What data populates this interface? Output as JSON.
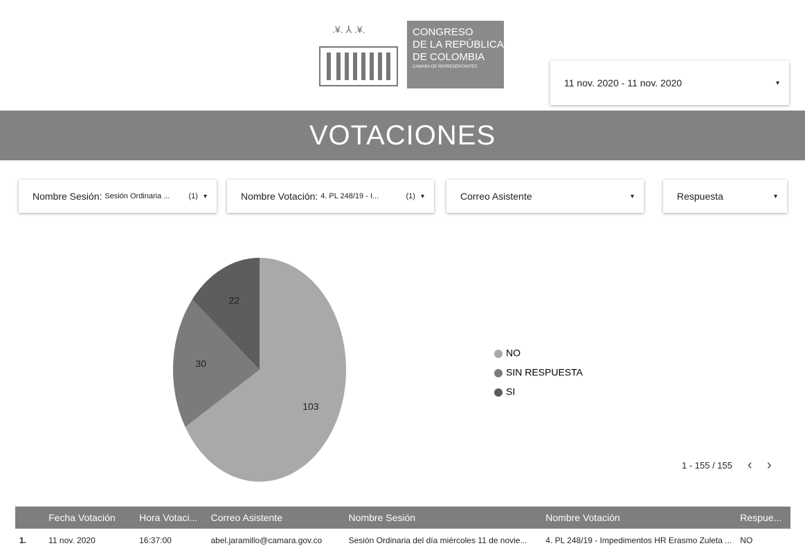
{
  "header": {
    "logo_lines": [
      "CONGRESO",
      "DE LA REPÚBLICA",
      "DE COLOMBIA",
      "CAMARA DE REPRESENTANTES"
    ],
    "date_range": "11 nov. 2020 - 11 nov. 2020",
    "title": "VOTACIONES"
  },
  "filters": [
    {
      "label": "Nombre Sesión:",
      "value": "Sesión Ordinaria ...",
      "count": "(1)"
    },
    {
      "label": "Nombre Votación:",
      "value": "4. PL 248/19 - I...",
      "count": "(1)"
    },
    {
      "label": "Correo Asistente"
    },
    {
      "label": "Respuesta"
    }
  ],
  "chart_data": {
    "type": "pie",
    "categories": [
      "NO",
      "SIN RESPUESTA",
      "SI"
    ],
    "values": [
      103,
      30,
      22
    ],
    "colors": [
      "#a9a9a9",
      "#7b7b7b",
      "#5d5d5d"
    ],
    "legend": "right"
  },
  "pagination": "1 - 155 / 155",
  "table": {
    "columns": [
      "Fecha Votación",
      "Hora Votaci...",
      "Correo Asistente",
      "Nombre Sesión",
      "Nombre Votación",
      "Respue..."
    ],
    "rows": [
      {
        "index": "1.",
        "cells": [
          "11 nov. 2020",
          "16:37:00",
          "abel.jaramillo@camara.gov.co",
          "Sesión Ordinaria del día miércoles 11 de novie...",
          "4. PL 248/19 - Impedimentos HR Erasmo Zuleta ...",
          "NO"
        ]
      }
    ]
  }
}
